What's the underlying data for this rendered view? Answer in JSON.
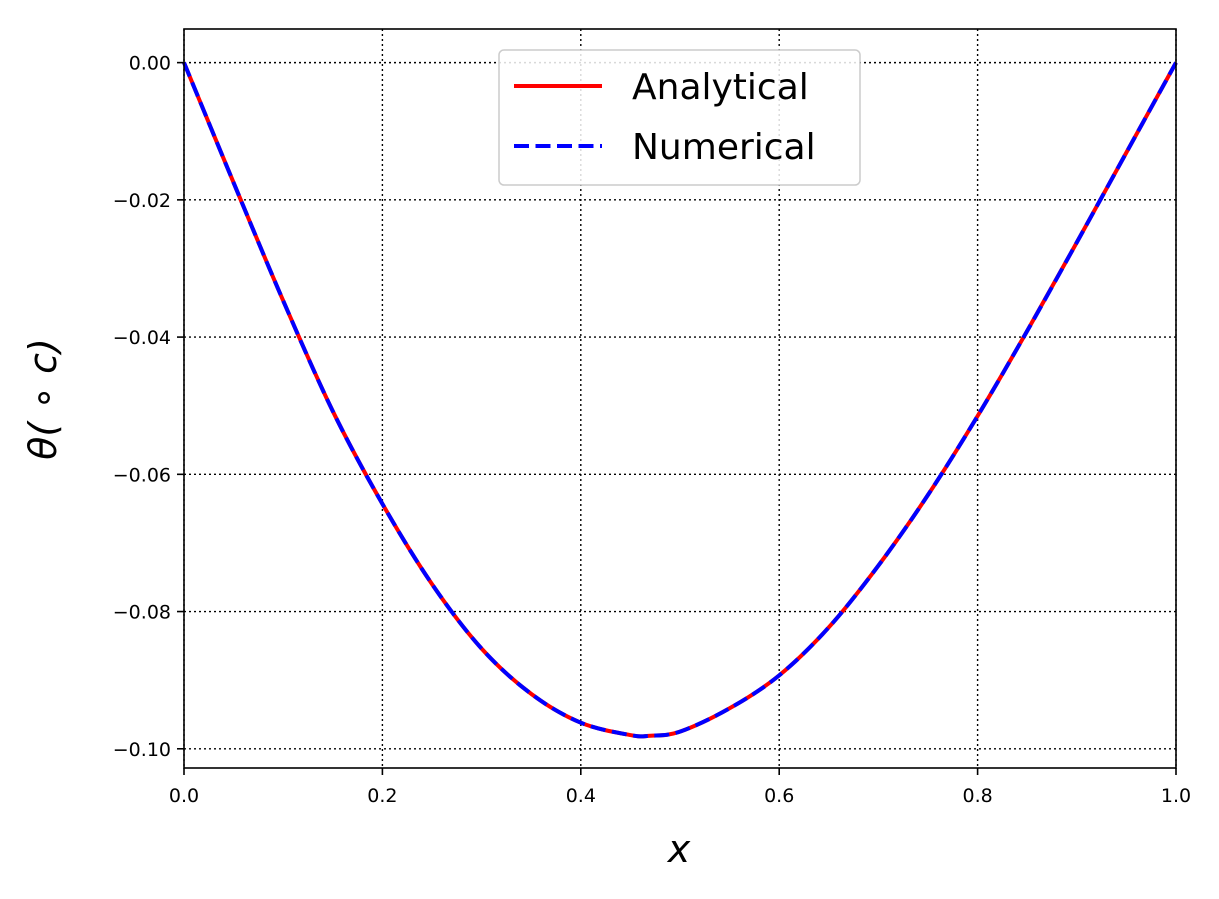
{
  "chart_data": {
    "type": "line",
    "title": "",
    "xlabel": "x",
    "ylabel": "θ( ∘ c)",
    "xlim": [
      0.0,
      1.0
    ],
    "ylim": [
      -0.1028,
      0.0049
    ],
    "xticks": [
      0.0,
      0.2,
      0.4,
      0.6,
      0.8,
      1.0
    ],
    "xtick_labels": [
      "0.0",
      "0.2",
      "0.4",
      "0.6",
      "0.8",
      "1.0"
    ],
    "yticks": [
      0.0,
      -0.02,
      -0.04,
      -0.06,
      -0.08,
      -0.1
    ],
    "ytick_labels": [
      "0.00",
      "−0.02",
      "−0.04",
      "−0.06",
      "−0.08",
      "−0.10"
    ],
    "grid": true,
    "legend_position": "upper center",
    "x": [
      0.0,
      0.05,
      0.1,
      0.15,
      0.2,
      0.25,
      0.3,
      0.35,
      0.4,
      0.45,
      0.47,
      0.5,
      0.55,
      0.6,
      0.65,
      0.7,
      0.75,
      0.8,
      0.85,
      0.9,
      0.95,
      1.0
    ],
    "series": [
      {
        "name": "Analytical",
        "color": "#ff0000",
        "linestyle": "solid",
        "values": [
          0.0,
          -0.0175,
          -0.0347,
          -0.0508,
          -0.0643,
          -0.076,
          -0.0854,
          -0.092,
          -0.0962,
          -0.098,
          -0.0981,
          -0.0975,
          -0.0941,
          -0.0893,
          -0.0823,
          -0.0733,
          -0.063,
          -0.0515,
          -0.0391,
          -0.0262,
          -0.0131,
          0.0
        ]
      },
      {
        "name": "Numerical",
        "color": "#0000ff",
        "linestyle": "dashed",
        "values": [
          0.0,
          -0.0175,
          -0.0347,
          -0.0508,
          -0.0643,
          -0.076,
          -0.0854,
          -0.092,
          -0.0962,
          -0.098,
          -0.0981,
          -0.0975,
          -0.0941,
          -0.0893,
          -0.0823,
          -0.0733,
          -0.063,
          -0.0515,
          -0.0391,
          -0.0262,
          -0.0131,
          0.0
        ]
      }
    ]
  }
}
